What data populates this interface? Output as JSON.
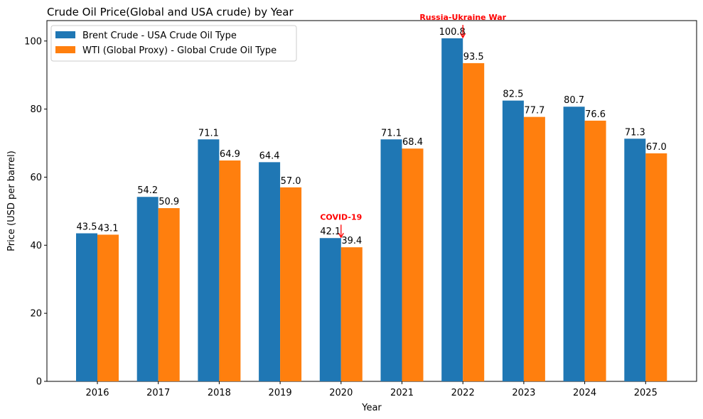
{
  "chart_data": {
    "type": "bar",
    "title": "Crude Oil Price(Global and USA crude) by Year",
    "xlabel": "Year",
    "ylabel": "Price (USD per barrel)",
    "categories": [
      "2016",
      "2017",
      "2018",
      "2019",
      "2020",
      "2021",
      "2022",
      "2023",
      "2024",
      "2025"
    ],
    "series": [
      {
        "name": "Brent Crude - USA Crude Oil Type",
        "color": "#1f77b4",
        "values": [
          43.5,
          54.2,
          71.1,
          64.4,
          42.1,
          71.1,
          100.8,
          82.5,
          80.7,
          71.3
        ],
        "labels": [
          "43.5",
          "54.2",
          "71.1",
          "64.4",
          "42.1",
          "71.1",
          "100.8",
          "82.5",
          "80.7",
          "71.3"
        ]
      },
      {
        "name": "WTI (Global Proxy) - Global Crude Oil Type",
        "color": "#ff7f0e",
        "values": [
          43.1,
          50.9,
          64.9,
          57.0,
          39.4,
          68.4,
          93.5,
          77.7,
          76.6,
          67.0
        ],
        "labels": [
          "43.1",
          "50.9",
          "64.9",
          "57.0",
          "39.4",
          "68.4",
          "93.5",
          "77.7",
          "76.6",
          "67.0"
        ]
      }
    ],
    "ylim": [
      0,
      106
    ],
    "yticks": [
      0,
      20,
      40,
      60,
      80,
      100
    ],
    "ytick_labels": [
      "0",
      "20",
      "40",
      "60",
      "80",
      "100"
    ],
    "grid": false,
    "legend_position": "top-left",
    "annotations": [
      {
        "text": "COVID-19",
        "category": "2020",
        "y": 42.1,
        "text_y": 47.5,
        "color": "#ff0000"
      },
      {
        "text": "Russia-Ukraine War",
        "category": "2022",
        "y": 100.8,
        "text_y": 106.2,
        "color": "#ff0000"
      }
    ]
  }
}
